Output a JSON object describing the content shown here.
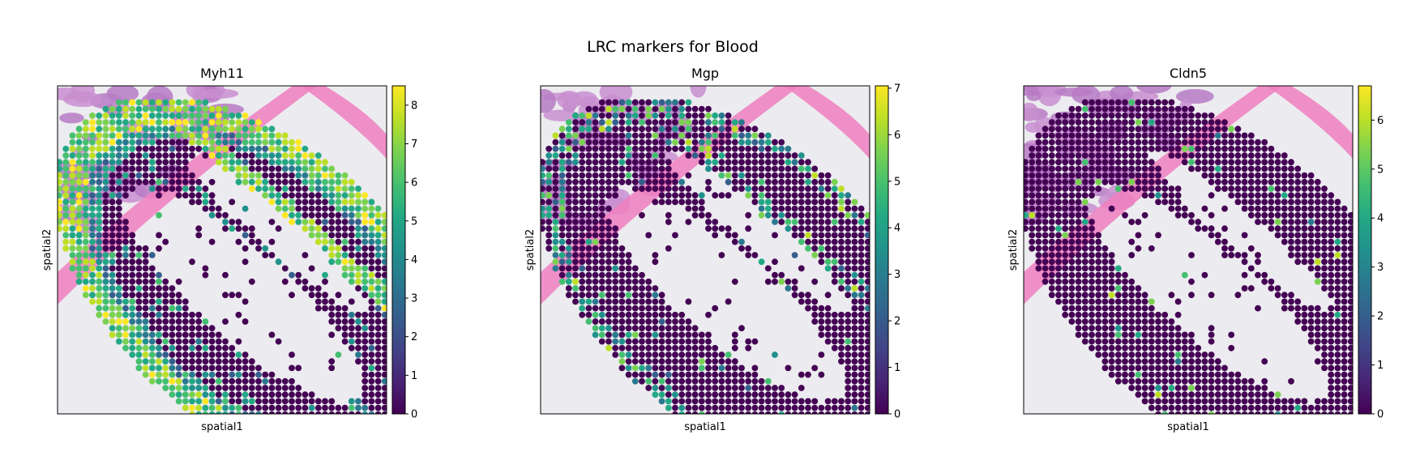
{
  "figure": {
    "suptitle": "LRC markers for Blood"
  },
  "chart_data": [
    {
      "type": "scatter",
      "title": "Myh11",
      "xlabel": "spatial1",
      "ylabel": "spatial2",
      "colorbar": {
        "range": [
          0,
          8.5
        ],
        "ticks": [
          "0",
          "1",
          "2",
          "3",
          "4",
          "5",
          "6",
          "7",
          "8"
        ],
        "colormap": "viridis"
      },
      "pattern": "high expression in outer wall rings and inner band",
      "grid": false
    },
    {
      "type": "scatter",
      "title": "Mgp",
      "xlabel": "spatial1",
      "ylabel": "spatial2",
      "colorbar": {
        "range": [
          0,
          7.05
        ],
        "ticks": [
          "0",
          "1",
          "2",
          "3",
          "4",
          "5",
          "6",
          "7"
        ],
        "colormap": "viridis"
      },
      "pattern": "moderate patchy expression along wall bands",
      "grid": false
    },
    {
      "type": "scatter",
      "title": "Cldn5",
      "xlabel": "spatial1",
      "ylabel": "spatial2",
      "colorbar": {
        "range": [
          0,
          6.7
        ],
        "ticks": [
          "0",
          "1",
          "2",
          "3",
          "4",
          "5",
          "6"
        ],
        "colormap": "viridis"
      },
      "pattern": "mostly low with sparse positive spots",
      "grid": false
    }
  ]
}
